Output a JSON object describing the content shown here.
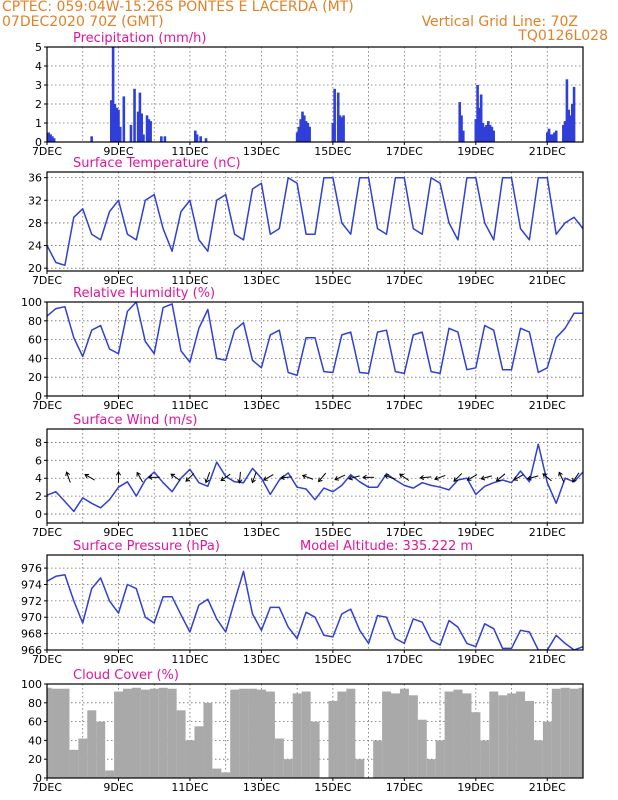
{
  "header": {
    "line1_left": "CPTEC:  059:04W-15:26S  PONTES E LACERDA (MT)",
    "line2_left": "07DEC2020 70Z (GMT)",
    "line2_right": "Vertical Grid Line: 70Z",
    "line3_right": "TQ0126L028"
  },
  "colors": {
    "header": "#e0822a",
    "title": "#e0169a",
    "series": "#2f3fd8",
    "cloud": "#a9a9a9",
    "grid": "#6e6e6e",
    "axis": "#000000"
  },
  "chart_data": [
    {
      "id": "precip",
      "type": "bar",
      "title": "Precipitation (mm/h)",
      "x_ticks": [
        "7DEC",
        "9DEC",
        "11DEC",
        "13DEC",
        "15DEC",
        "17DEC",
        "19DEC",
        "21DEC"
      ],
      "x_tick_day_offsets": [
        0,
        2,
        4,
        6,
        8,
        10,
        12,
        14
      ],
      "x_range_days": [
        0,
        15
      ],
      "y_ticks": [
        "0",
        "1",
        "2",
        "3",
        "4",
        "5"
      ],
      "y_tick_values": [
        0,
        1,
        2,
        3,
        4,
        5
      ],
      "ylim": [
        0,
        5
      ],
      "grid": true,
      "series": [
        {
          "x_days": [
            0.05,
            0.1,
            0.15,
            0.2,
            1.25,
            1.8,
            1.85,
            1.9,
            1.95,
            2.0,
            2.05,
            2.15,
            2.35,
            2.45,
            2.55,
            2.6,
            2.65,
            2.7,
            2.8,
            2.85,
            2.9,
            3.2,
            3.3,
            4.15,
            4.2,
            4.3,
            4.45,
            7.0,
            7.05,
            7.1,
            7.15,
            7.2,
            7.25,
            7.3,
            7.35,
            8.0,
            8.05,
            8.15,
            8.2,
            8.25,
            8.3,
            11.55,
            11.6,
            11.65,
            12.0,
            12.05,
            12.1,
            12.15,
            12.2,
            12.25,
            12.3,
            12.35,
            12.4,
            12.45,
            12.5,
            14.0,
            14.05,
            14.1,
            14.15,
            14.2,
            14.25,
            14.45,
            14.5,
            14.55,
            14.6,
            14.65,
            14.7,
            14.75
          ],
          "values": [
            0.5,
            0.4,
            0.3,
            0.2,
            0.3,
            2.2,
            5.0,
            2.0,
            1.8,
            1.7,
            0.8,
            2.4,
            0.9,
            2.8,
            1.6,
            2.6,
            1.5,
            0.4,
            1.4,
            1.2,
            1.1,
            0.3,
            0.3,
            0.6,
            0.4,
            0.3,
            0.2,
            0.5,
            0.8,
            1.2,
            1.6,
            1.4,
            1.1,
            1.0,
            0.8,
            1.0,
            2.8,
            2.6,
            1.4,
            1.3,
            1.4,
            2.1,
            1.4,
            0.6,
            1.2,
            3.0,
            1.8,
            2.5,
            1.0,
            0.8,
            0.9,
            1.1,
            0.9,
            0.8,
            0.6,
            0.5,
            0.7,
            0.4,
            0.4,
            0.5,
            0.6,
            0.9,
            1.1,
            3.3,
            1.7,
            1.4,
            2.0,
            2.9
          ]
        }
      ]
    },
    {
      "id": "temp",
      "type": "line",
      "title": "Surface Temperature (nC)",
      "x_ticks": [
        "7DEC",
        "9DEC",
        "11DEC",
        "13DEC",
        "15DEC",
        "17DEC",
        "19DEC",
        "21DEC"
      ],
      "x_tick_day_offsets": [
        0,
        2,
        4,
        6,
        8,
        10,
        12,
        14
      ],
      "x_range_days": [
        0,
        15
      ],
      "y_ticks": [
        "20",
        "24",
        "28",
        "32",
        "36"
      ],
      "y_tick_values": [
        20,
        24,
        28,
        32,
        36
      ],
      "ylim": [
        19.5,
        37
      ],
      "grid": true,
      "series": [
        {
          "x_days": [
            0,
            0.25,
            0.5,
            0.75,
            1.0,
            1.25,
            1.5,
            1.75,
            2.0,
            2.25,
            2.5,
            2.75,
            3.0,
            3.25,
            3.5,
            3.75,
            4.0,
            4.25,
            4.5,
            4.75,
            5.0,
            5.25,
            5.5,
            5.75,
            6.0,
            6.25,
            6.5,
            6.75,
            7.0,
            7.25,
            7.5,
            7.75,
            8.0,
            8.25,
            8.5,
            8.75,
            9.0,
            9.25,
            9.5,
            9.75,
            10.0,
            10.25,
            10.5,
            10.75,
            11.0,
            11.25,
            11.5,
            11.75,
            12.0,
            12.25,
            12.5,
            12.75,
            13.0,
            13.25,
            13.5,
            13.75,
            14.0,
            14.25,
            14.5,
            14.75,
            15.0
          ],
          "values": [
            24,
            21,
            20.5,
            29,
            30.5,
            26,
            25,
            30,
            32,
            26,
            25,
            32,
            33,
            27,
            23,
            30,
            32,
            25,
            23,
            32,
            33,
            26,
            25,
            34,
            35,
            26,
            27,
            36,
            35,
            26,
            26,
            36,
            36,
            28,
            26,
            36,
            36,
            27,
            26,
            36,
            36,
            27,
            26,
            36,
            35,
            28,
            25,
            36,
            36,
            28,
            25,
            36,
            36,
            27,
            25,
            36,
            36,
            26,
            28,
            29,
            27
          ]
        }
      ]
    },
    {
      "id": "rh",
      "type": "line",
      "title": "Relative Humidity (%)",
      "x_ticks": [
        "7DEC",
        "9DEC",
        "11DEC",
        "13DEC",
        "15DEC",
        "17DEC",
        "19DEC",
        "21DEC"
      ],
      "x_tick_day_offsets": [
        0,
        2,
        4,
        6,
        8,
        10,
        12,
        14
      ],
      "x_range_days": [
        0,
        15
      ],
      "y_ticks": [
        "0",
        "20",
        "40",
        "60",
        "80",
        "100"
      ],
      "y_tick_values": [
        0,
        20,
        40,
        60,
        80,
        100
      ],
      "ylim": [
        0,
        100
      ],
      "grid": true,
      "series": [
        {
          "x_days": [
            0,
            0.25,
            0.5,
            0.75,
            1.0,
            1.25,
            1.5,
            1.75,
            2.0,
            2.25,
            2.5,
            2.75,
            3.0,
            3.25,
            3.5,
            3.75,
            4.0,
            4.25,
            4.5,
            4.75,
            5.0,
            5.25,
            5.5,
            5.75,
            6.0,
            6.25,
            6.5,
            6.75,
            7.0,
            7.25,
            7.5,
            7.75,
            8.0,
            8.25,
            8.5,
            8.75,
            9.0,
            9.25,
            9.5,
            9.75,
            10.0,
            10.25,
            10.5,
            10.75,
            11.0,
            11.25,
            11.5,
            11.75,
            12.0,
            12.25,
            12.5,
            12.75,
            13.0,
            13.25,
            13.5,
            13.75,
            14.0,
            14.25,
            14.5,
            14.75,
            15.0
          ],
          "values": [
            85,
            93,
            95,
            62,
            42,
            70,
            75,
            50,
            45,
            90,
            100,
            58,
            45,
            94,
            98,
            48,
            36,
            72,
            92,
            40,
            38,
            70,
            78,
            38,
            30,
            65,
            70,
            25,
            22,
            62,
            62,
            26,
            25,
            65,
            68,
            25,
            24,
            68,
            70,
            26,
            24,
            65,
            68,
            26,
            24,
            72,
            68,
            28,
            30,
            75,
            70,
            28,
            28,
            72,
            68,
            25,
            30,
            62,
            72,
            88,
            88
          ]
        }
      ]
    },
    {
      "id": "wind",
      "type": "line",
      "title": "Surface Wind (m/s)",
      "x_ticks": [
        "7DEC",
        "9DEC",
        "11DEC",
        "13DEC",
        "15DEC",
        "17DEC",
        "19DEC",
        "21DEC"
      ],
      "x_tick_day_offsets": [
        0,
        2,
        4,
        6,
        8,
        10,
        12,
        14
      ],
      "x_range_days": [
        0,
        15
      ],
      "y_ticks": [
        "0",
        "2",
        "4",
        "6",
        "8"
      ],
      "y_tick_values": [
        0,
        2,
        4,
        6,
        8
      ],
      "ylim": [
        -1,
        9.5
      ],
      "grid": true,
      "series": [
        {
          "x_days": [
            0,
            0.25,
            0.5,
            0.75,
            1.0,
            1.25,
            1.5,
            1.75,
            2.0,
            2.25,
            2.5,
            2.75,
            3.0,
            3.25,
            3.5,
            3.75,
            4.0,
            4.25,
            4.5,
            4.75,
            5.0,
            5.25,
            5.5,
            5.75,
            6.0,
            6.25,
            6.5,
            6.75,
            7.0,
            7.25,
            7.5,
            7.75,
            8.0,
            8.25,
            8.5,
            8.75,
            9.0,
            9.25,
            9.5,
            9.75,
            10.0,
            10.25,
            10.5,
            10.75,
            11.0,
            11.25,
            11.5,
            11.75,
            12.0,
            12.25,
            12.5,
            12.75,
            13.0,
            13.25,
            13.5,
            13.75,
            14.0,
            14.25,
            14.5,
            14.75,
            15.0
          ],
          "values": [
            2.1,
            2.5,
            1.4,
            0.3,
            1.8,
            1.2,
            0.7,
            1.6,
            3.0,
            3.6,
            2.0,
            3.8,
            4.7,
            3.5,
            2.5,
            4.0,
            5.0,
            3.5,
            3.1,
            5.8,
            4.2,
            3.6,
            3.5,
            5.1,
            4.0,
            2.2,
            3.8,
            4.6,
            3.0,
            2.8,
            1.6,
            2.9,
            2.5,
            3.2,
            4.4,
            3.6,
            3.0,
            3.0,
            4.5,
            3.8,
            3.2,
            2.9,
            3.5,
            3.2,
            3.0,
            2.7,
            3.8,
            4.0,
            2.2,
            3.1,
            3.5,
            3.8,
            3.5,
            4.8,
            3.6,
            7.8,
            3.5,
            1.2,
            4.0,
            3.6,
            4.7
          ]
        }
      ],
      "wind_arrows": {
        "x_days": [
          0.6,
          1.2,
          2.0,
          2.6,
          3.0,
          3.6,
          4.0,
          4.5,
          5.0,
          5.4,
          5.8,
          6.2,
          6.7,
          7.3,
          7.7,
          8.2,
          8.6,
          9.0,
          9.6,
          10.0,
          10.6,
          11.0,
          11.5,
          11.9,
          12.3,
          12.7,
          13.2,
          13.6,
          14.0,
          14.4,
          14.8
        ],
        "angles_deg": [
          250,
          210,
          270,
          240,
          180,
          215,
          135,
          110,
          145,
          95,
          110,
          150,
          175,
          200,
          130,
          155,
          165,
          180,
          200,
          215,
          175,
          160,
          135,
          150,
          165,
          140,
          150,
          165,
          220,
          245,
          125
        ]
      }
    },
    {
      "id": "pressure",
      "type": "line",
      "title": "Surface Pressure (hPa)",
      "subtitle": "Model Altitude: 335.222 m",
      "x_ticks": [
        "7DEC",
        "9DEC",
        "11DEC",
        "13DEC",
        "15DEC",
        "17DEC",
        "19DEC",
        "21DEC"
      ],
      "x_tick_day_offsets": [
        0,
        2,
        4,
        6,
        8,
        10,
        12,
        14
      ],
      "x_range_days": [
        0,
        15
      ],
      "y_ticks": [
        "966",
        "968",
        "970",
        "972",
        "974",
        "976"
      ],
      "y_tick_values": [
        966,
        968,
        970,
        972,
        974,
        976
      ],
      "ylim": [
        966,
        977.6
      ],
      "grid": true,
      "series": [
        {
          "x_days": [
            0,
            0.25,
            0.5,
            0.75,
            1.0,
            1.25,
            1.5,
            1.75,
            2.0,
            2.25,
            2.5,
            2.75,
            3.0,
            3.25,
            3.5,
            3.75,
            4.0,
            4.25,
            4.5,
            4.75,
            5.0,
            5.25,
            5.5,
            5.75,
            6.0,
            6.25,
            6.5,
            6.75,
            7.0,
            7.25,
            7.5,
            7.75,
            8.0,
            8.25,
            8.5,
            8.75,
            9.0,
            9.25,
            9.5,
            9.75,
            10.0,
            10.25,
            10.5,
            10.75,
            11.0,
            11.25,
            11.5,
            11.75,
            12.0,
            12.25,
            12.5,
            12.75,
            13.0,
            13.25,
            13.5,
            13.75,
            14.0,
            14.25,
            14.5,
            14.75,
            15.0
          ],
          "values": [
            974.4,
            975,
            975.2,
            972,
            969.3,
            973.5,
            974.8,
            972,
            970.5,
            974,
            973.5,
            970,
            969.3,
            972.5,
            972.5,
            970.3,
            968.2,
            971.5,
            972.2,
            969.8,
            968.2,
            972,
            975.6,
            970.4,
            968.4,
            971.2,
            971.2,
            968.8,
            967.4,
            970.6,
            970,
            967.8,
            967.6,
            970.4,
            971,
            968.4,
            966.8,
            970.2,
            970,
            967.4,
            966.8,
            969.8,
            969.4,
            967.2,
            966.6,
            969.6,
            968.8,
            966.8,
            966.4,
            969.2,
            968.6,
            966.2,
            966.2,
            968.4,
            968.2,
            966,
            966,
            967.8,
            966.8,
            966,
            966.4
          ]
        }
      ]
    },
    {
      "id": "cloud",
      "type": "bar",
      "title": "Cloud Cover (%)",
      "x_ticks": [
        "7DEC",
        "9DEC",
        "11DEC",
        "13DEC",
        "15DEC",
        "17DEC",
        "19DEC",
        "21DEC"
      ],
      "x_tick_day_offsets": [
        0,
        2,
        4,
        6,
        8,
        10,
        12,
        14
      ],
      "x_range_days": [
        0,
        15
      ],
      "y_ticks": [
        "0",
        "20",
        "40",
        "60",
        "80",
        "100"
      ],
      "y_tick_values": [
        0,
        20,
        40,
        60,
        80,
        100
      ],
      "ylim": [
        0,
        100
      ],
      "grid": true,
      "series": [
        {
          "x_days": [
            0,
            0.25,
            0.5,
            0.75,
            1.0,
            1.25,
            1.5,
            1.75,
            2.0,
            2.25,
            2.5,
            2.75,
            3.0,
            3.25,
            3.5,
            3.75,
            4.0,
            4.25,
            4.5,
            4.75,
            5.0,
            5.25,
            5.5,
            5.75,
            6.0,
            6.25,
            6.5,
            6.75,
            7.0,
            7.25,
            7.5,
            7.75,
            8.0,
            8.25,
            8.5,
            8.75,
            9.0,
            9.25,
            9.5,
            9.75,
            10.0,
            10.25,
            10.5,
            10.75,
            11.0,
            11.25,
            11.5,
            11.75,
            12.0,
            12.25,
            12.5,
            12.75,
            13.0,
            13.25,
            13.5,
            13.75,
            14.0,
            14.25,
            14.5,
            14.75,
            15.0
          ],
          "values": [
            96,
            95,
            95,
            30,
            42,
            72,
            60,
            8,
            92,
            95,
            96,
            94,
            95,
            96,
            95,
            72,
            40,
            55,
            80,
            10,
            6,
            94,
            95,
            95,
            94,
            92,
            42,
            20,
            90,
            92,
            60,
            0,
            82,
            92,
            95,
            20,
            0,
            40,
            92,
            90,
            95,
            88,
            62,
            20,
            40,
            92,
            94,
            90,
            70,
            40,
            92,
            88,
            90,
            92,
            82,
            40,
            60,
            95,
            96,
            95,
            96
          ]
        }
      ]
    }
  ]
}
